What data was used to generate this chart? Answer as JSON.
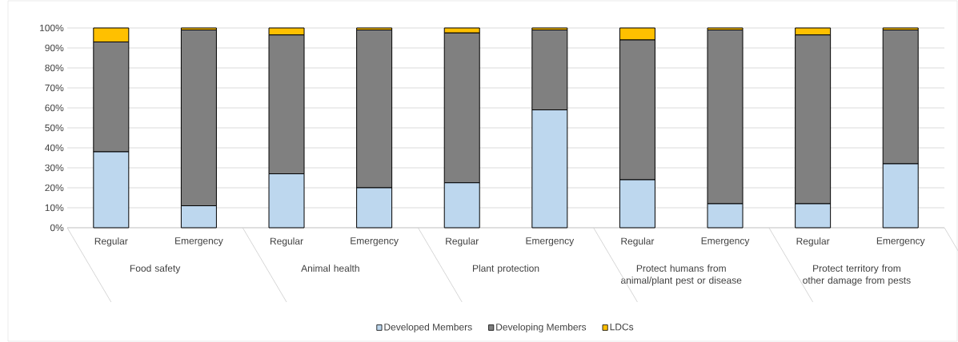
{
  "chart_data": {
    "type": "bar",
    "stacked": true,
    "categories": [
      "Regular",
      "Emergency",
      "Regular",
      "Emergency",
      "Regular",
      "Emergency",
      "Regular",
      "Emergency",
      "Regular",
      "Emergency"
    ],
    "annotations": [
      "Food safety",
      "Animal health",
      "Plant protection",
      "Protect humans from animal/plant pest or disease",
      "Protect territory from other damage from pests"
    ],
    "series": [
      {
        "name": "Developed Members",
        "color": "#bdd7ee",
        "values": [
          38,
          11,
          27,
          20,
          22.5,
          59,
          24,
          12,
          12,
          32
        ]
      },
      {
        "name": "Developing Members",
        "color": "#808080",
        "values": [
          55,
          88,
          69.5,
          79,
          75,
          40,
          70,
          87,
          84.5,
          67
        ]
      },
      {
        "name": "LDCs",
        "color": "#ffc000",
        "values": [
          7,
          1,
          3.5,
          1,
          2.5,
          1,
          6,
          1,
          3.5,
          1
        ]
      }
    ],
    "ylim": [
      0,
      100
    ],
    "yticks": [
      {
        "value": 0,
        "label": "0%"
      },
      {
        "value": 10,
        "label": "10%"
      },
      {
        "value": 20,
        "label": "20%"
      },
      {
        "value": 30,
        "label": "30%"
      },
      {
        "value": 40,
        "label": "40%"
      },
      {
        "value": 50,
        "label": "50%"
      },
      {
        "value": 60,
        "label": "60%"
      },
      {
        "value": 70,
        "label": "70%"
      },
      {
        "value": 80,
        "label": "80%"
      },
      {
        "value": 90,
        "label": "90%"
      },
      {
        "value": 100,
        "label": "100%"
      }
    ],
    "grid": "y",
    "legend": "bottom"
  }
}
